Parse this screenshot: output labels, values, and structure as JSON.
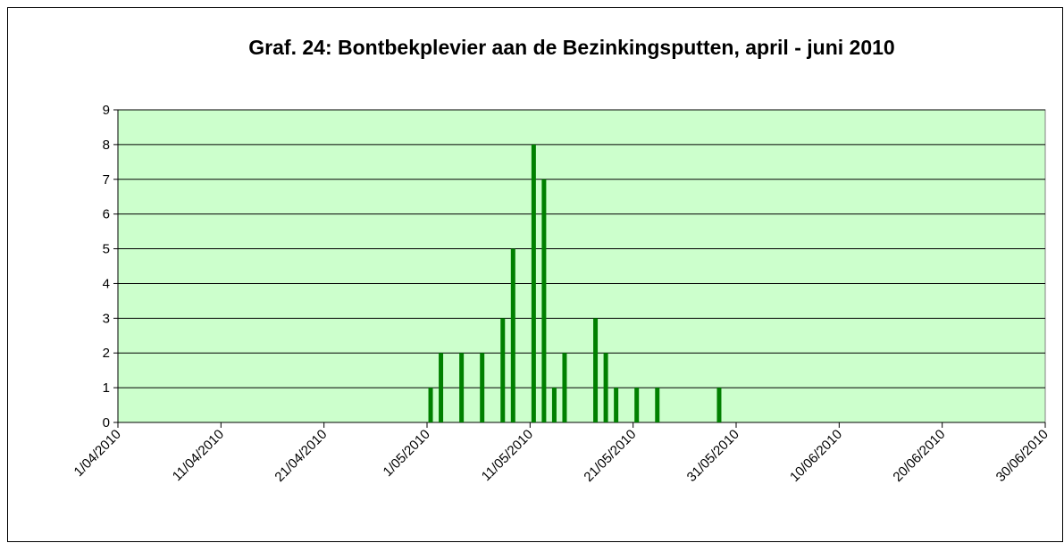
{
  "chart_data": {
    "type": "bar",
    "title": "Graf. 24: Bontbekplevier aan de Bezinkingsputten, april - juni 2010",
    "x": [
      "1/05/2010",
      "2/05/2010",
      "4/05/2010",
      "6/05/2010",
      "8/05/2010",
      "9/05/2010",
      "11/05/2010",
      "12/05/2010",
      "13/05/2010",
      "14/05/2010",
      "17/05/2010",
      "18/05/2010",
      "19/05/2010",
      "21/05/2010",
      "23/05/2010",
      "29/05/2010"
    ],
    "values": [
      1,
      2,
      2,
      2,
      3,
      5,
      8,
      7,
      1,
      2,
      3,
      2,
      1,
      1,
      1,
      1
    ],
    "color": "#008000",
    "xlim": [
      "1/04/2010",
      "30/06/2010"
    ],
    "xticks": [
      "1/04/2010",
      "11/04/2010",
      "21/04/2010",
      "1/05/2010",
      "11/05/2010",
      "21/05/2010",
      "31/05/2010",
      "10/06/2010",
      "20/06/2010",
      "30/06/2010"
    ],
    "ylim": [
      0,
      9
    ],
    "yticks": [
      0,
      1,
      2,
      3,
      4,
      5,
      6,
      7,
      8,
      9
    ],
    "grid": true,
    "plot_background": "#ccffcc"
  }
}
